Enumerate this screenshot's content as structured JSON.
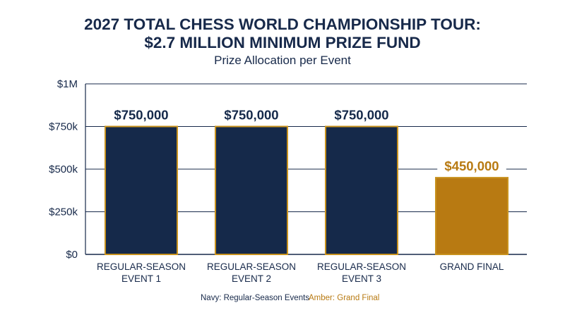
{
  "title_line1": "2027 TOTAL CHESS WORLD CHAMPIONSHIP TOUR:",
  "title_line2": "$2.7 MILLION MINIMUM PRIZE FUND",
  "subtitle": "Prize Allocation per Event",
  "legend": {
    "navy": "Navy: Regular-Season Events",
    "amber": "Amber: Grand Final"
  },
  "colors": {
    "navy": "#15294a",
    "amber": "#b87a12",
    "bar_outline": "#c8921e",
    "axis_text": "#17294a",
    "gridline": "#17294a"
  },
  "chart_data": {
    "type": "bar",
    "categories": [
      [
        "REGULAR-SEASON",
        "EVENT 1"
      ],
      [
        "REGULAR-SEASON",
        "EVENT 2"
      ],
      [
        "REGULAR-SEASON",
        "EVENT 3"
      ],
      [
        "GRAND FINAL"
      ]
    ],
    "values": [
      750000,
      750000,
      750000,
      450000
    ],
    "value_labels": [
      "$750,000",
      "$750,000",
      "$750,000",
      "$450,000"
    ],
    "bar_colors": [
      "navy",
      "navy",
      "navy",
      "amber"
    ],
    "ylim": [
      0,
      1000000
    ],
    "yticks": [
      0,
      250000,
      500000,
      750000,
      1000000
    ],
    "ytick_labels": [
      "$0",
      "$250k",
      "$500k",
      "$750k",
      "$1M"
    ],
    "grid": true,
    "legend_position": "bottom"
  }
}
